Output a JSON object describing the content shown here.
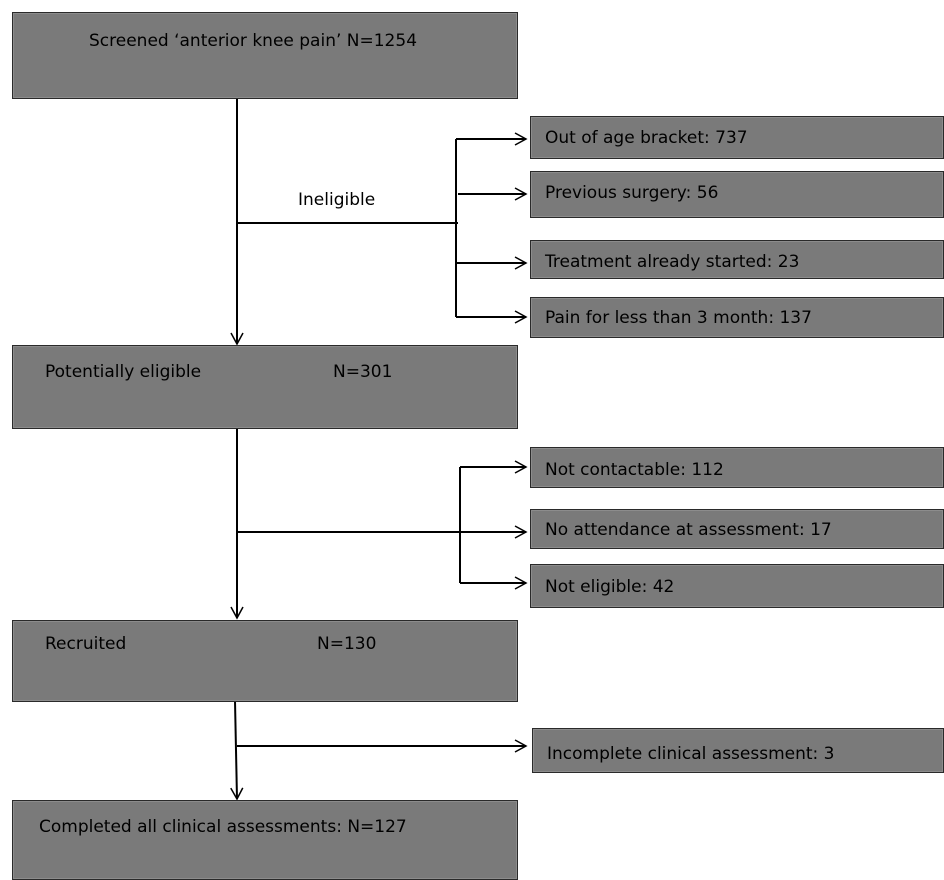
{
  "main": {
    "screened": {
      "label": "Screened ‘anterior knee pain’ N=1254"
    },
    "potential": {
      "label": "Potentially eligible",
      "count": "N=301"
    },
    "recruited": {
      "label": "Recruited",
      "count": "N=130"
    },
    "completed": {
      "label": "Completed all clinical assessments: N=127"
    }
  },
  "ineligible_label": "Ineligible",
  "exclusions_1": [
    "Out of age bracket: 737",
    "Previous surgery: 56",
    "Treatment already started: 23",
    "Pain for less than 3 month: 137"
  ],
  "exclusions_2": [
    "Not contactable: 112",
    "No attendance at assessment: 17",
    "Not eligible: 42"
  ],
  "exclusions_3": [
    "Incomplete clinical assessment: 3"
  ]
}
